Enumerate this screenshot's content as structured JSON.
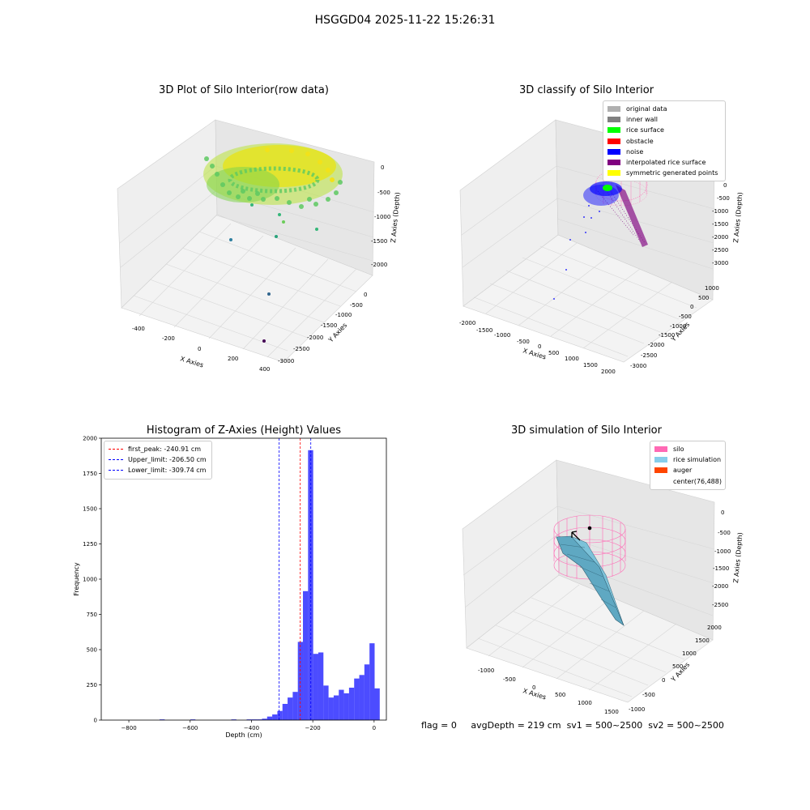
{
  "suptitle": "HSGGD04 2025-11-22 15:26:31",
  "panels": {
    "raw": {
      "title": "3D Plot of Silo Interior(row data)",
      "xlabel": "X Axies",
      "ylabel": "Y Axies",
      "zlabel": "Z Axies (Depth)",
      "x_ticks": [
        "-400",
        "-200",
        "0",
        "200",
        "400"
      ],
      "y_ticks": [
        "0",
        "-500",
        "-1000",
        "-1500",
        "-2000",
        "-2500",
        "-3000"
      ],
      "z_ticks": [
        "0",
        "-500",
        "-1000",
        "-1500",
        "-2000"
      ]
    },
    "classify": {
      "title": "3D classify of Silo Interior",
      "xlabel": "X Axies",
      "ylabel": "Y Axies",
      "zlabel": "Z Axies (Depth)",
      "x_ticks": [
        "-2000",
        "-1500",
        "-1000",
        "-500",
        "0",
        "500",
        "1000",
        "1500",
        "2000"
      ],
      "y_ticks": [
        "1000",
        "500",
        "0",
        "-500",
        "-1000",
        "-1500",
        "-2000",
        "-2500",
        "-3000"
      ],
      "z_ticks": [
        "0",
        "-500",
        "-1000",
        "-1500",
        "-2000",
        "-2500",
        "-3000"
      ],
      "legend": [
        {
          "label": "original data",
          "color": "#b0b0b0"
        },
        {
          "label": "inner wall",
          "color": "#808080"
        },
        {
          "label": "rice surface",
          "color": "#00ff00"
        },
        {
          "label": "obstacle",
          "color": "#ff0000"
        },
        {
          "label": "noise",
          "color": "#0000ff"
        },
        {
          "label": "interpolated rice surface",
          "color": "#800080"
        },
        {
          "label": "symmetric generated points",
          "color": "#ffff00"
        }
      ]
    },
    "simulation": {
      "title": "3D simulation of Silo Interior",
      "xlabel": "X Axies",
      "ylabel": "Y Axies",
      "zlabel": "Z Axies (Depth)",
      "x_ticks": [
        "-1000",
        "-500",
        "0",
        "500",
        "1000",
        "1500"
      ],
      "y_ticks": [
        "2000",
        "1500",
        "1000",
        "500",
        "0",
        "-500",
        "-1000"
      ],
      "z_ticks": [
        "0",
        "-500",
        "-1000",
        "-1500",
        "-2000",
        "-2500"
      ],
      "legend": [
        {
          "label": "silo",
          "color": "#ff69b4"
        },
        {
          "label": "rice simulation",
          "color": "#87ceeb"
        },
        {
          "label": "auger",
          "color": "#ff4500"
        },
        {
          "label": "center(76,488)",
          "color": ""
        }
      ]
    }
  },
  "chart_data": {
    "type": "bar",
    "title": "Histogram of Z-Axies (Height) Values",
    "xlabel": "Depth (cm)",
    "ylabel": "Frequency",
    "xlim": [
      -890,
      40
    ],
    "ylim": [
      0,
      2000
    ],
    "x_ticks": [
      -800,
      -600,
      -400,
      -200,
      0
    ],
    "y_ticks": [
      0,
      250,
      500,
      750,
      1000,
      1250,
      1500,
      1750,
      2000
    ],
    "bar_color": "#0000ff",
    "bin_width": 16.7,
    "bin_start": -850,
    "values": [
      0,
      0,
      0,
      0,
      0,
      0,
      0,
      0,
      0,
      5,
      0,
      0,
      0,
      0,
      0,
      5,
      0,
      0,
      0,
      0,
      0,
      0,
      0,
      5,
      0,
      0,
      5,
      5,
      5,
      10,
      25,
      40,
      65,
      115,
      160,
      200,
      555,
      915,
      1915,
      470,
      480,
      245,
      160,
      175,
      215,
      190,
      230,
      295,
      320,
      395,
      545,
      225
    ],
    "vlines": [
      {
        "label": "first_peak: -240.91 cm",
        "x": -240.91,
        "color": "#ff0000"
      },
      {
        "label": "Upper_limit: -206.50 cm",
        "x": -206.5,
        "color": "#0000ff"
      },
      {
        "label": "Lower_limit: -309.74 cm",
        "x": -309.74,
        "color": "#0000ff"
      }
    ]
  },
  "footer": {
    "flag": "flag = 0",
    "avg": "avgDepth = 219 cm",
    "sv1": "sv1 = 500~2500",
    "sv2": "sv2 = 500~2500"
  }
}
